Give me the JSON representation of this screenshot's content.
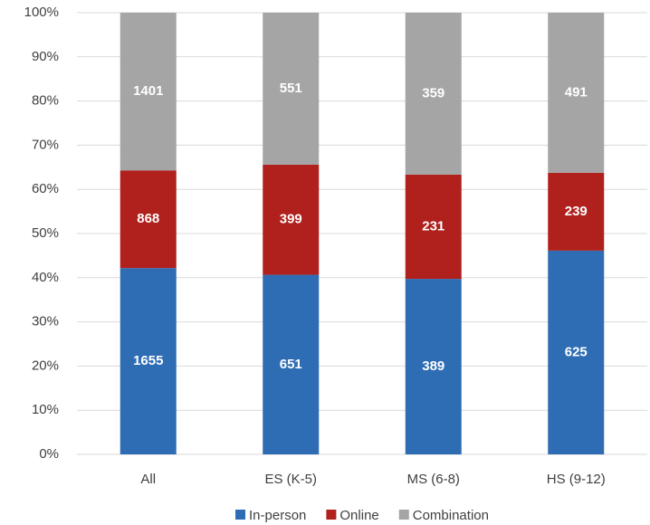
{
  "chart_data": {
    "type": "bar",
    "stacking": "percent",
    "categories": [
      "All",
      "ES (K-5)",
      "MS (6-8)",
      "HS (9-12)"
    ],
    "series": [
      {
        "name": "In-person",
        "color": "#2e6db4",
        "values": [
          1655,
          651,
          389,
          625
        ]
      },
      {
        "name": "Online",
        "color": "#b0201c",
        "values": [
          868,
          399,
          231,
          239
        ]
      },
      {
        "name": "Combination",
        "color": "#a5a5a5",
        "values": [
          1401,
          551,
          359,
          491
        ]
      }
    ],
    "ylim": [
      0,
      100
    ],
    "yticks": [
      {
        "value": 0,
        "label": "0%"
      },
      {
        "value": 10,
        "label": "10%"
      },
      {
        "value": 20,
        "label": "20%"
      },
      {
        "value": 30,
        "label": "30%"
      },
      {
        "value": 40,
        "label": "40%"
      },
      {
        "value": 50,
        "label": "50%"
      },
      {
        "value": 60,
        "label": "60%"
      },
      {
        "value": 70,
        "label": "70%"
      },
      {
        "value": 80,
        "label": "80%"
      },
      {
        "value": 90,
        "label": "90%"
      },
      {
        "value": 100,
        "label": "100%"
      }
    ],
    "grid": true,
    "legend": "bottom"
  }
}
